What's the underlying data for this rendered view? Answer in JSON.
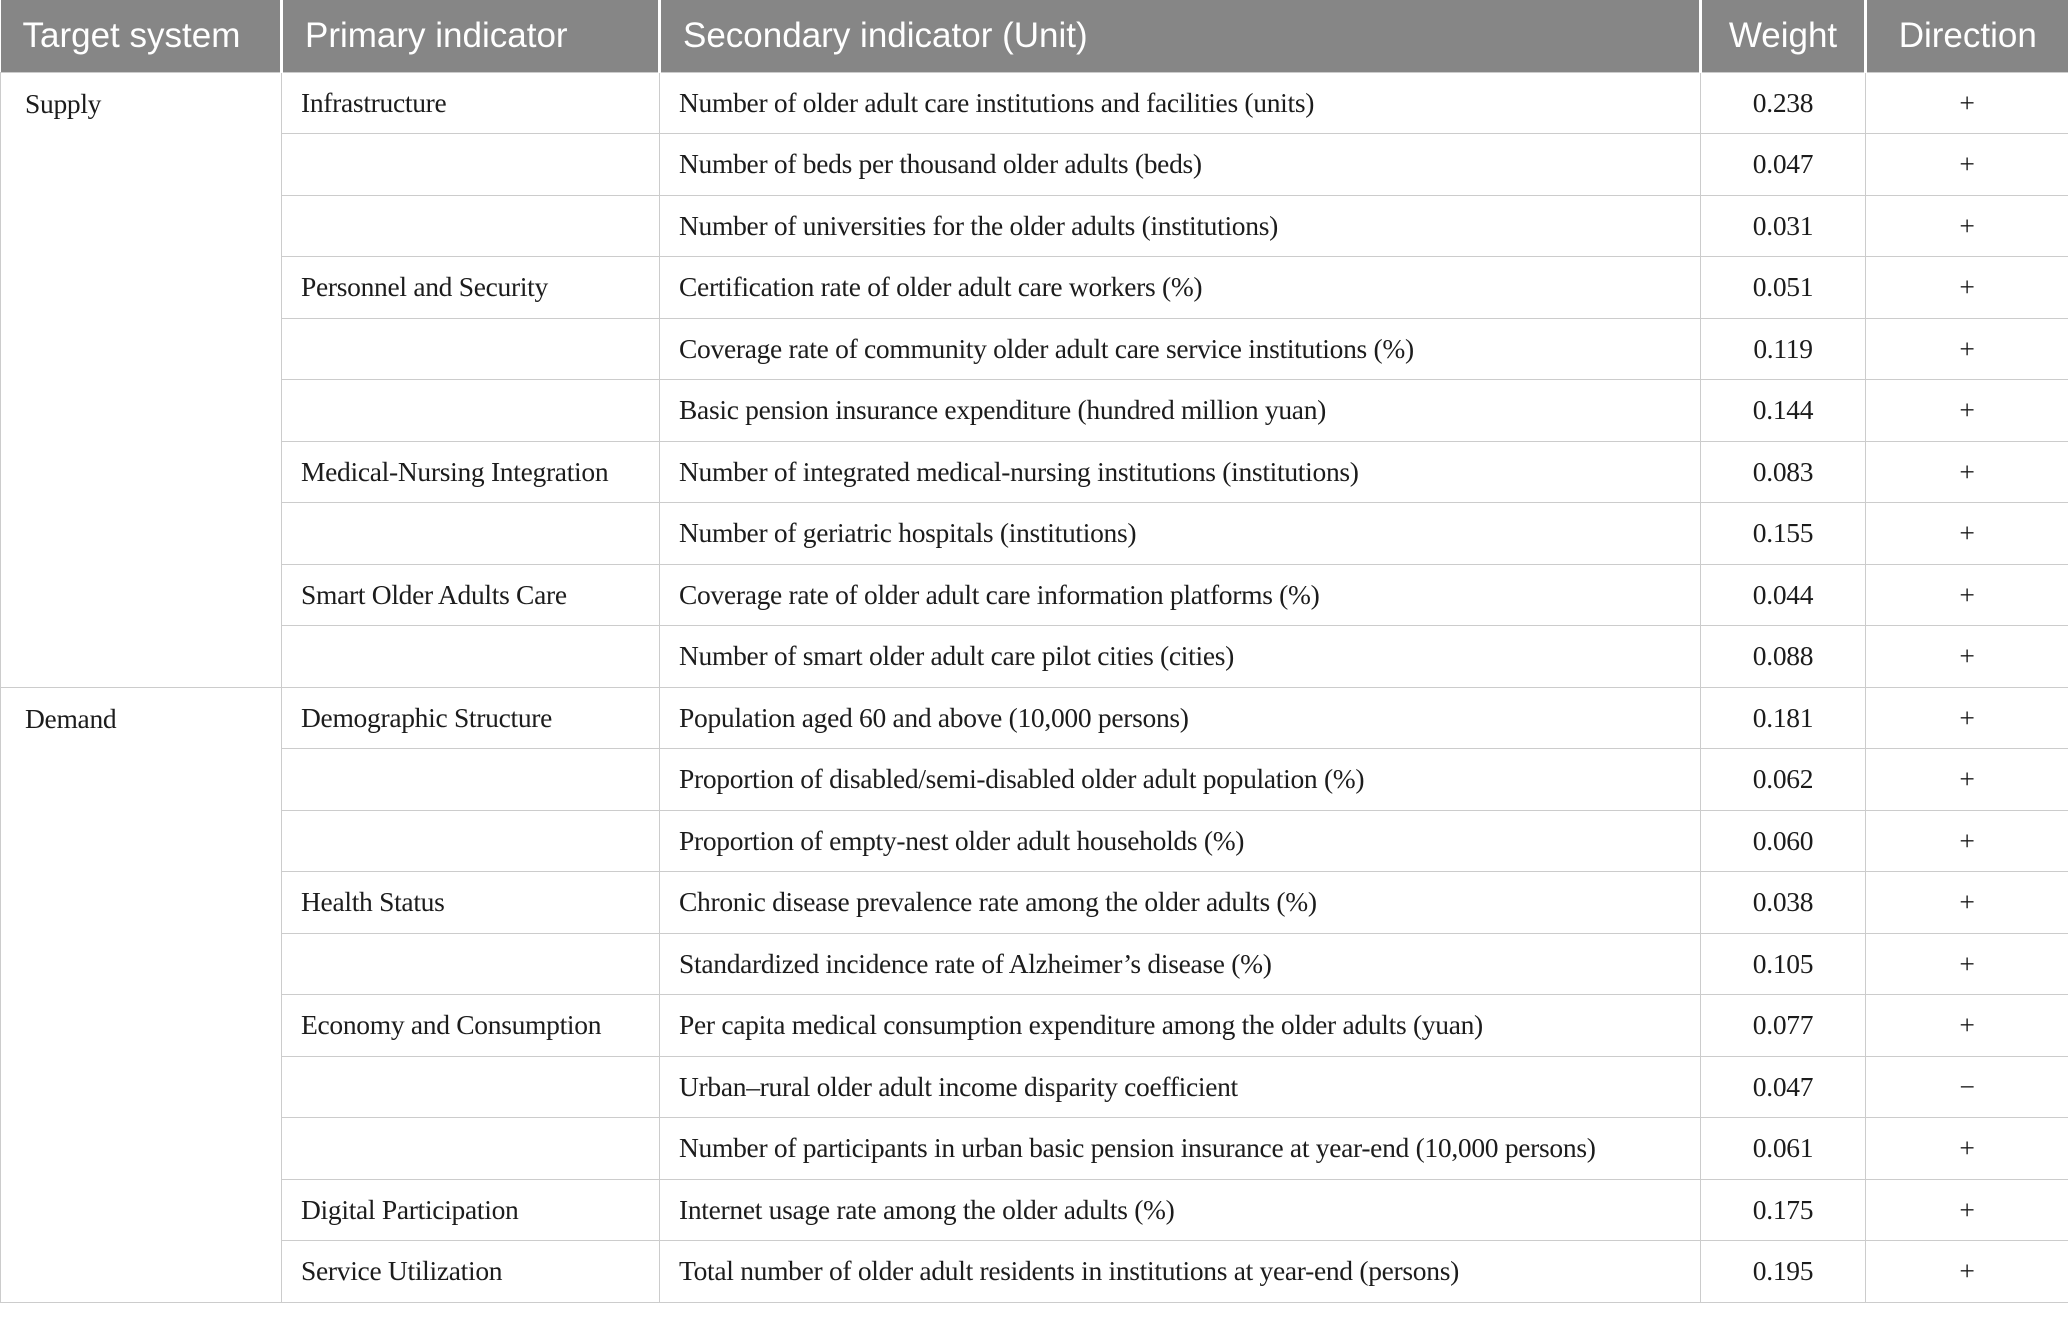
{
  "colors": {
    "header_bg": "#868686",
    "header_text": "#ffffff",
    "body_text": "#1c1c1c",
    "border": "#cccccc"
  },
  "table": {
    "columns": [
      "Target system",
      "Primary indicator",
      "Secondary indicator (Unit)",
      "Weight",
      "Direction"
    ],
    "sections": [
      {
        "target": "Supply",
        "rows": [
          {
            "primary": "Infrastructure",
            "secondary": "Number of older adult care institutions and facilities (units)",
            "weight": "0.238",
            "direction": "+"
          },
          {
            "primary": "",
            "secondary": "Number of beds per thousand older adults (beds)",
            "weight": "0.047",
            "direction": "+"
          },
          {
            "primary": "",
            "secondary": "Number of universities for the older adults (institutions)",
            "weight": "0.031",
            "direction": "+"
          },
          {
            "primary": "Personnel and Security",
            "secondary": "Certification rate of older adult care workers (%)",
            "weight": "0.051",
            "direction": "+"
          },
          {
            "primary": "",
            "secondary": "Coverage rate of community older adult care service institutions (%)",
            "weight": "0.119",
            "direction": "+"
          },
          {
            "primary": "",
            "secondary": "Basic pension insurance expenditure (hundred million yuan)",
            "weight": "0.144",
            "direction": "+"
          },
          {
            "primary": "Medical-Nursing Integration",
            "secondary": "Number of integrated medical-nursing institutions (institutions)",
            "weight": "0.083",
            "direction": "+"
          },
          {
            "primary": "",
            "secondary": "Number of geriatric hospitals (institutions)",
            "weight": "0.155",
            "direction": "+"
          },
          {
            "primary": "Smart Older Adults Care",
            "secondary": "Coverage rate of older adult care information platforms (%)",
            "weight": "0.044",
            "direction": "+"
          },
          {
            "primary": "",
            "secondary": "Number of smart older adult care pilot cities (cities)",
            "weight": "0.088",
            "direction": "+"
          }
        ]
      },
      {
        "target": "Demand",
        "rows": [
          {
            "primary": "Demographic Structure",
            "secondary": "Population aged 60 and above (10,000 persons)",
            "weight": "0.181",
            "direction": "+"
          },
          {
            "primary": "",
            "secondary": "Proportion of disabled/semi-disabled older adult population (%)",
            "weight": "0.062",
            "direction": "+"
          },
          {
            "primary": "",
            "secondary": "Proportion of empty-nest older adult households (%)",
            "weight": "0.060",
            "direction": "+"
          },
          {
            "primary": "Health Status",
            "secondary": "Chronic disease prevalence rate among the older adults (%)",
            "weight": "0.038",
            "direction": "+"
          },
          {
            "primary": "",
            "secondary": "Standardized incidence rate of Alzheimer’s disease (%)",
            "weight": "0.105",
            "direction": "+"
          },
          {
            "primary": "Economy and Consumption",
            "secondary": "Per capita medical consumption expenditure among the older adults (yuan)",
            "weight": "0.077",
            "direction": "+"
          },
          {
            "primary": "",
            "secondary": "Urban–rural older adult income disparity coefficient",
            "weight": "0.047",
            "direction": "−"
          },
          {
            "primary": "",
            "secondary": "Number of participants in urban basic pension insurance at year-end (10,000 persons)",
            "weight": "0.061",
            "direction": "+"
          },
          {
            "primary": "Digital Participation",
            "secondary": "Internet usage rate among the older adults (%)",
            "weight": "0.175",
            "direction": "+"
          },
          {
            "primary": "Service Utilization",
            "secondary": "Total number of older adult residents in institutions at year-end (persons)",
            "weight": "0.195",
            "direction": "+"
          }
        ]
      }
    ]
  }
}
